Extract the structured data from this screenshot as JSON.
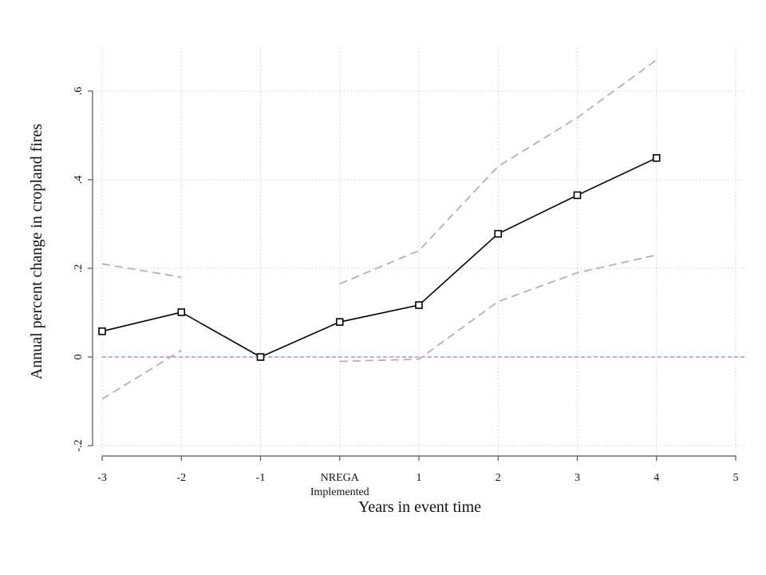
{
  "chart_data": {
    "type": "line",
    "title": "",
    "xlabel": "Years in event time",
    "ylabel": "Annual percent change in cropland fires",
    "x_ticks": [
      {
        "x": -3,
        "label": "-3"
      },
      {
        "x": -2,
        "label": "-2"
      },
      {
        "x": -1,
        "label": "-1"
      },
      {
        "x": 0,
        "label": "NREGA",
        "sublabel": "Implemented"
      },
      {
        "x": 1,
        "label": "1"
      },
      {
        "x": 2,
        "label": "2"
      },
      {
        "x": 3,
        "label": "3"
      },
      {
        "x": 4,
        "label": "4"
      },
      {
        "x": 5,
        "label": "5"
      }
    ],
    "y_ticks": [
      {
        "y": -0.2,
        "label": "-.2"
      },
      {
        "y": 0,
        "label": "0"
      },
      {
        "y": 0.2,
        "label": ".2"
      },
      {
        "y": 0.4,
        "label": ".4"
      },
      {
        "y": 0.6,
        "label": ".6"
      }
    ],
    "xlim": [
      -3,
      5
    ],
    "ylim": [
      -0.2,
      0.6
    ],
    "grid": true,
    "reference_line_y": 0,
    "series": [
      {
        "role": "estimate",
        "x": [
          -3,
          -2,
          -1,
          0,
          1,
          2,
          3,
          4
        ],
        "values": [
          0.058,
          0.101,
          0.0,
          0.079,
          0.117,
          0.278,
          0.365,
          0.449
        ]
      },
      {
        "role": "ci_upper",
        "segments": [
          {
            "x": [
              -3,
              -2
            ],
            "values": [
              0.21,
              0.18
            ]
          },
          {
            "x": [
              0,
              1,
              2,
              3,
              4
            ],
            "values": [
              0.165,
              0.24,
              0.43,
              0.54,
              0.67
            ]
          }
        ]
      },
      {
        "role": "ci_lower",
        "segments": [
          {
            "x": [
              -3,
              -2
            ],
            "values": [
              -0.095,
              0.015
            ]
          },
          {
            "x": [
              0,
              1,
              2,
              3,
              4
            ],
            "values": [
              -0.01,
              -0.005,
              0.125,
              0.19,
              0.23
            ]
          }
        ]
      }
    ],
    "colors": {
      "estimate": "#000000",
      "ci": "#b3b3b3",
      "zero_line": "#b07aa5",
      "grid": "#cfcfcf"
    }
  }
}
